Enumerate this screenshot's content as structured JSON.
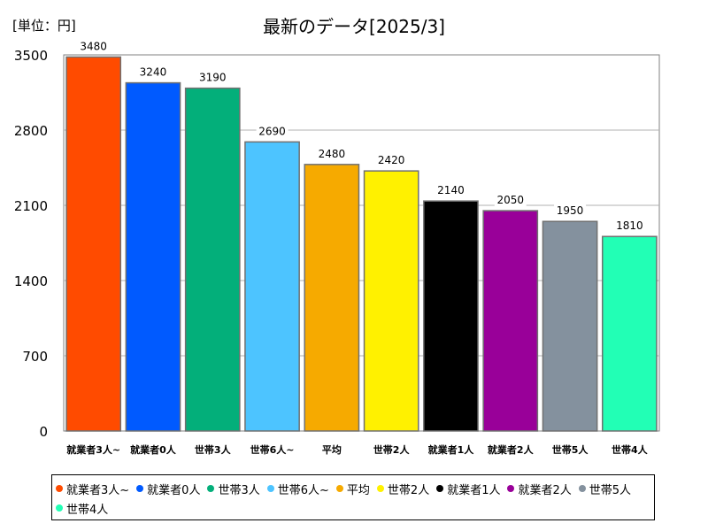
{
  "chart_data": {
    "type": "bar",
    "title": "最新のデータ[2025/3]",
    "unit_label": "[単位：円]",
    "categories": [
      "就業者3人~",
      "就業者0人",
      "世帯3人",
      "世帯6人~",
      "平均",
      "世帯2人",
      "就業者1人",
      "就業者2人",
      "世帯5人",
      "世帯4人"
    ],
    "values": [
      3480,
      3240,
      3190,
      2690,
      2480,
      2420,
      2140,
      2050,
      1950,
      1810
    ],
    "colors": [
      "#ff4b00",
      "#005aff",
      "#03af7a",
      "#4dc4ff",
      "#f6aa00",
      "#fff100",
      "#000000",
      "#990099",
      "#84919e",
      "#22ffb5"
    ],
    "yticks": [
      "0",
      "700",
      "1400",
      "2100",
      "2800",
      "3500"
    ],
    "ylim": [
      0,
      3500
    ],
    "grid": true,
    "legend_placement": "bottom"
  }
}
